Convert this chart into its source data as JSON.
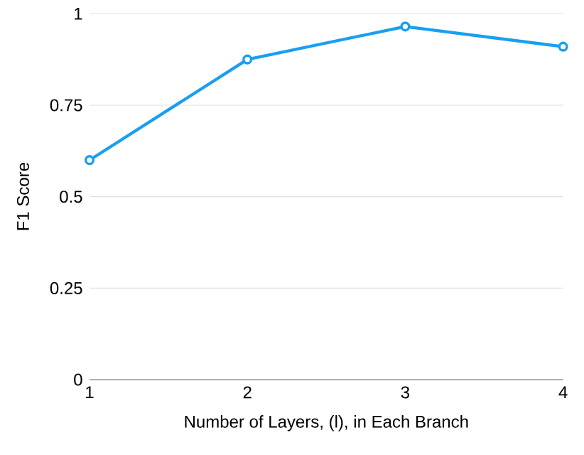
{
  "chart_data": {
    "type": "line",
    "xlabel": "Number of Layers, (l), in Each Branch",
    "ylabel": "F1 Score",
    "x": [
      1,
      2,
      3,
      4
    ],
    "series": [
      {
        "color": "#1a9ff0",
        "values": [
          0.6,
          0.875,
          0.965,
          0.91
        ]
      }
    ],
    "xlim": [
      1,
      4
    ],
    "xticks": [
      1,
      2,
      3,
      4
    ],
    "ylim": [
      0,
      1
    ],
    "yticks": [
      0,
      0.25,
      0.5,
      0.75,
      1
    ],
    "grid": "y",
    "marker": "circle",
    "line_style": "solid"
  }
}
